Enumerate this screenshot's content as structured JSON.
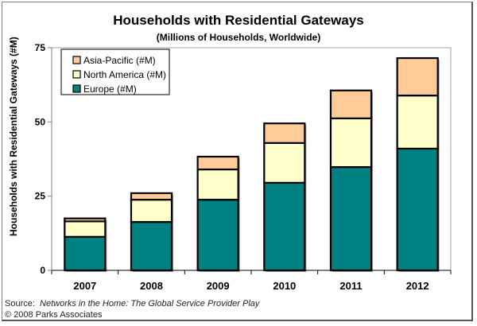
{
  "chart_data": {
    "type": "bar",
    "stacked": true,
    "title": "Households with Residential Gateways",
    "subtitle": "(Millions of Households, Worldwide)",
    "xlabel": "",
    "ylabel": "Households with Residential Gateways (#M)",
    "ylim": [
      0,
      75
    ],
    "yticks": [
      "0",
      "25",
      "50",
      "75"
    ],
    "ytick_values": [
      0,
      25,
      50,
      75
    ],
    "categories": [
      "2007",
      "2008",
      "2009",
      "2010",
      "2011",
      "2012"
    ],
    "series": [
      {
        "name": "Europe (#M)",
        "color": "#008080",
        "values": [
          11.3,
          16.3,
          23.8,
          29.5,
          34.8,
          41.0
        ]
      },
      {
        "name": "North America (#M)",
        "color": "#FFFFCC",
        "values": [
          5.2,
          7.5,
          10.2,
          13.4,
          16.4,
          17.9
        ]
      },
      {
        "name": "Asia-Pacific (#M)",
        "color": "#FFCC99",
        "values": [
          1.0,
          2.2,
          4.3,
          6.6,
          9.4,
          12.6
        ]
      }
    ],
    "legend": [
      "Asia-Pacific (#M)",
      "North America (#M)",
      "Europe (#M)"
    ],
    "legend_position": "top-left",
    "grid": false
  },
  "footer": {
    "source_prefix": "Source:",
    "source_title": "Networks in the Home: The Global Service Provider Play",
    "copyright": "© 2008 Parks Associates"
  }
}
